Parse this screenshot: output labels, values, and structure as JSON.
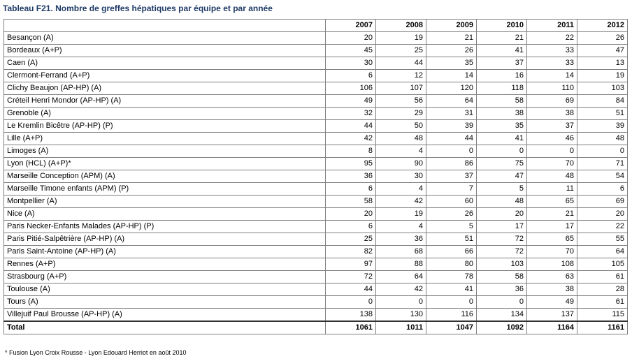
{
  "title": "Tableau F21. Nombre de greffes hépatiques par équipe et par année",
  "columns": [
    "2007",
    "2008",
    "2009",
    "2010",
    "2011",
    "2012"
  ],
  "rows": [
    {
      "team": "Besançon (A)",
      "values": [
        "20",
        "19",
        "21",
        "21",
        "22",
        "26"
      ]
    },
    {
      "team": "Bordeaux (A+P)",
      "values": [
        "45",
        "25",
        "26",
        "41",
        "33",
        "47"
      ]
    },
    {
      "team": "Caen (A)",
      "values": [
        "30",
        "44",
        "35",
        "37",
        "33",
        "13"
      ]
    },
    {
      "team": "Clermont-Ferrand (A+P)",
      "values": [
        "6",
        "12",
        "14",
        "16",
        "14",
        "19"
      ]
    },
    {
      "team": "Clichy Beaujon (AP-HP) (A)",
      "values": [
        "106",
        "107",
        "120",
        "118",
        "110",
        "103"
      ]
    },
    {
      "team": "Créteil Henri Mondor (AP-HP) (A)",
      "values": [
        "49",
        "56",
        "64",
        "58",
        "69",
        "84"
      ]
    },
    {
      "team": "Grenoble (A)",
      "values": [
        "32",
        "29",
        "31",
        "38",
        "38",
        "51"
      ]
    },
    {
      "team": "Le Kremlin Bicêtre (AP-HP) (P)",
      "values": [
        "44",
        "50",
        "39",
        "35",
        "37",
        "39"
      ]
    },
    {
      "team": "Lille (A+P)",
      "values": [
        "42",
        "48",
        "44",
        "41",
        "46",
        "48"
      ]
    },
    {
      "team": "Limoges (A)",
      "values": [
        "8",
        "4",
        "0",
        "0",
        "0",
        "0"
      ]
    },
    {
      "team": "Lyon (HCL) (A+P)*",
      "values": [
        "95",
        "90",
        "86",
        "75",
        "70",
        "71"
      ]
    },
    {
      "team": "Marseille Conception (APM) (A)",
      "values": [
        "36",
        "30",
        "37",
        "47",
        "48",
        "54"
      ]
    },
    {
      "team": "Marseille Timone enfants (APM) (P)",
      "values": [
        "6",
        "4",
        "7",
        "5",
        "11",
        "6"
      ]
    },
    {
      "team": "Montpellier (A)",
      "values": [
        "58",
        "42",
        "60",
        "48",
        "65",
        "69"
      ]
    },
    {
      "team": "Nice (A)",
      "values": [
        "20",
        "19",
        "26",
        "20",
        "21",
        "20"
      ]
    },
    {
      "team": "Paris Necker-Enfants Malades (AP-HP) (P)",
      "values": [
        "6",
        "4",
        "5",
        "17",
        "17",
        "22"
      ]
    },
    {
      "team": "Paris Pitié-Salpêtrière (AP-HP) (A)",
      "values": [
        "25",
        "36",
        "51",
        "72",
        "65",
        "55"
      ]
    },
    {
      "team": "Paris Saint-Antoine (AP-HP) (A)",
      "values": [
        "82",
        "68",
        "66",
        "72",
        "70",
        "64"
      ]
    },
    {
      "team": "Rennes (A+P)",
      "values": [
        "97",
        "88",
        "80",
        "103",
        "108",
        "105"
      ]
    },
    {
      "team": "Strasbourg (A+P)",
      "values": [
        "72",
        "64",
        "78",
        "58",
        "63",
        "61"
      ]
    },
    {
      "team": "Toulouse (A)",
      "values": [
        "44",
        "42",
        "41",
        "36",
        "38",
        "28"
      ]
    },
    {
      "team": "Tours (A)",
      "values": [
        "0",
        "0",
        "0",
        "0",
        "49",
        "61"
      ]
    },
    {
      "team": "Villejuif Paul Brousse (AP-HP) (A)",
      "values": [
        "138",
        "130",
        "116",
        "134",
        "137",
        "115"
      ]
    }
  ],
  "total": {
    "label": "Total",
    "values": [
      "1061",
      "1011",
      "1047",
      "1092",
      "1164",
      "1161"
    ]
  },
  "footnote": "* Fusion Lyon Croix Rousse - Lyon Edouard Herriot en août 2010",
  "colors": {
    "title": "#1f3a66",
    "grid_border": "#7f7f7f"
  }
}
